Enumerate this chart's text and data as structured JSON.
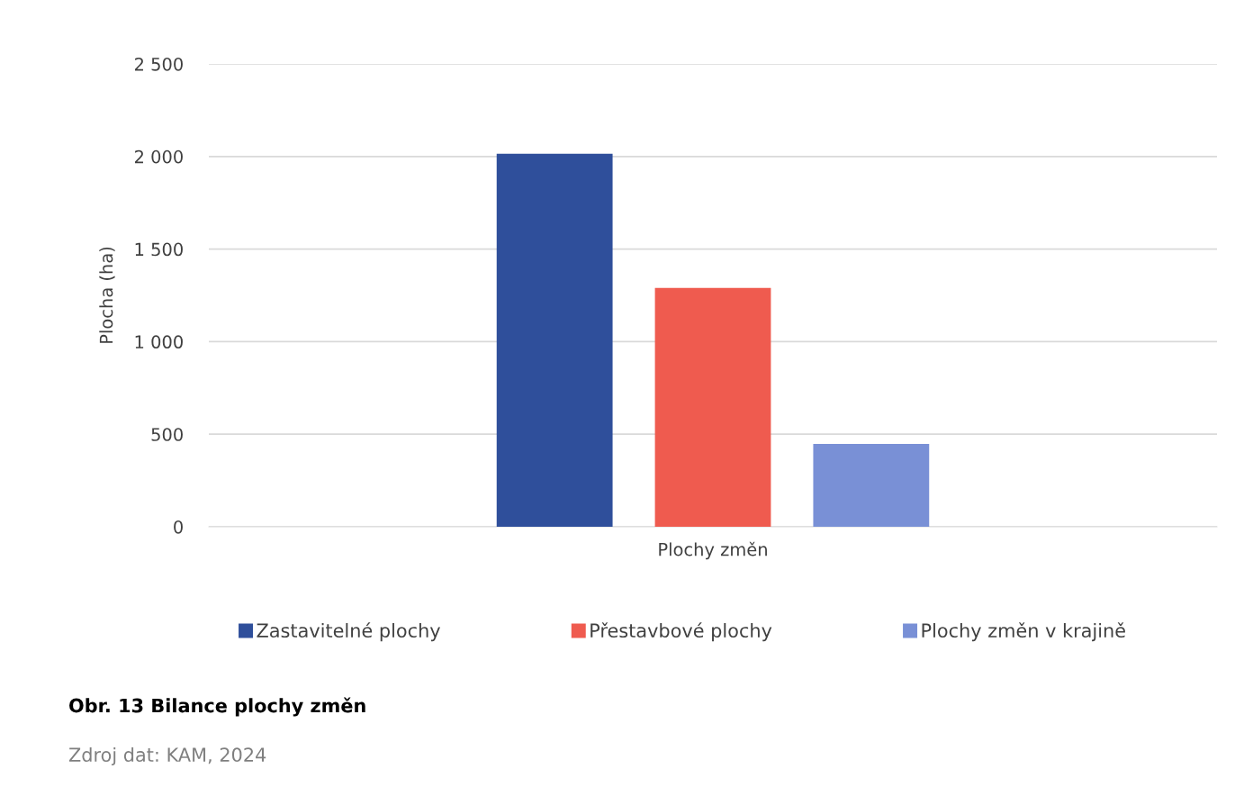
{
  "chart_data": {
    "type": "bar",
    "title": "Obr. 13 Bilance plochy změn",
    "ylabel": "Plocha (ha)",
    "categories": [
      "Plochy změn"
    ],
    "series": [
      {
        "name": "Zastavitelné plochy",
        "color": "#2f4f9b",
        "values": [
          2015
        ]
      },
      {
        "name": "Přestavbové plochy",
        "color": "#ef5b4f",
        "values": [
          1290
        ]
      },
      {
        "name": "Plochy změn v krajině",
        "color": "#7990d6",
        "values": [
          447
        ]
      }
    ],
    "ylim": [
      0,
      2500
    ],
    "yticks": [
      0,
      500,
      {
        "value": 1000,
        "label": "1 000"
      },
      {
        "value": 1500,
        "label": "1 500"
      },
      {
        "value": 2000,
        "label": "2 000"
      },
      {
        "value": 2500,
        "label": "2 500"
      }
    ],
    "grid": "y",
    "legend": "bottom",
    "annotations": [
      "Zdroj dat: KAM, 2024"
    ]
  }
}
